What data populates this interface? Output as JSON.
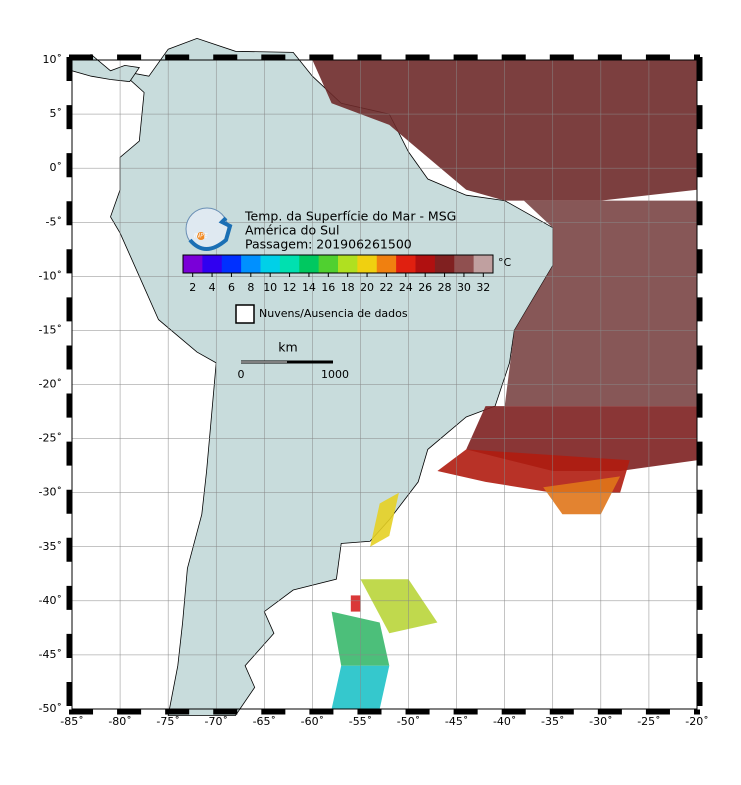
{
  "map": {
    "title": "Temp. da Superfície do Mar - MSG",
    "subtitle": "América do Sul",
    "pass": "Passagem: 201906261500",
    "logo": "INPE",
    "xlim": [
      -85,
      -20
    ],
    "ylim": [
      -50,
      10
    ],
    "xticks": [
      {
        "value": -85,
        "label": "-85˚"
      },
      {
        "value": -80,
        "label": "-80˚"
      },
      {
        "value": -75,
        "label": "-75˚"
      },
      {
        "value": -70,
        "label": "-70˚"
      },
      {
        "value": -65,
        "label": "-65˚"
      },
      {
        "value": -60,
        "label": "-60˚"
      },
      {
        "value": -55,
        "label": "-55˚"
      },
      {
        "value": -50,
        "label": "-50˚"
      },
      {
        "value": -45,
        "label": "-45˚"
      },
      {
        "value": -40,
        "label": "-40˚"
      },
      {
        "value": -35,
        "label": "-35˚"
      },
      {
        "value": -30,
        "label": "-30˚"
      },
      {
        "value": -25,
        "label": "-25˚"
      },
      {
        "value": -20,
        "label": "-20˚"
      }
    ],
    "yticks": [
      {
        "value": 10,
        "label": "10˚"
      },
      {
        "value": 5,
        "label": "5˚"
      },
      {
        "value": 0,
        "label": "0˚"
      },
      {
        "value": -5,
        "label": "-5˚"
      },
      {
        "value": -10,
        "label": "-10˚"
      },
      {
        "value": -15,
        "label": "-15˚"
      },
      {
        "value": -20,
        "label": "-20˚"
      },
      {
        "value": -25,
        "label": "-25˚"
      },
      {
        "value": -30,
        "label": "-30˚"
      },
      {
        "value": -35,
        "label": "-35˚"
      },
      {
        "value": -40,
        "label": "-40˚"
      },
      {
        "value": -45,
        "label": "-45˚"
      },
      {
        "value": -50,
        "label": "-50˚"
      }
    ],
    "colorbar": {
      "unit": "°C",
      "range": [
        1,
        33
      ],
      "ticks": [
        2,
        4,
        6,
        8,
        10,
        12,
        14,
        16,
        18,
        20,
        22,
        24,
        26,
        28,
        30,
        32
      ]
    },
    "legend": "Nuvens/Ausencia de dados",
    "scale": {
      "unit": "km",
      "ticks": [
        "0",
        "1000"
      ]
    }
  }
}
